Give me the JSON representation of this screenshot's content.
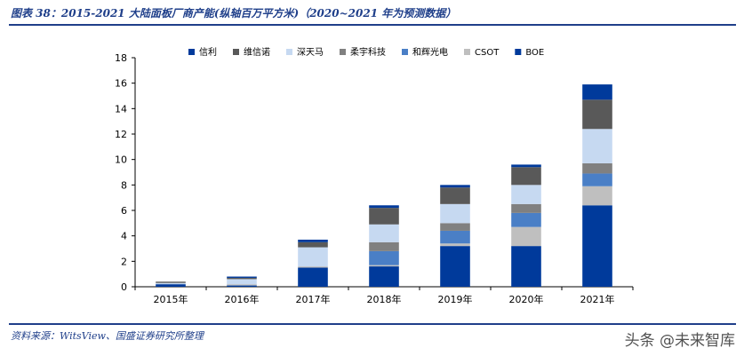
{
  "figure_title": "图表 38：2015-2021 大陆面板厂商产能(纵轴百万平方米)（2020~2021 年为预测数据）",
  "source": "资料来源：WitsView、国盛证券研究所整理",
  "watermark": "头条 @未来智库",
  "chart_data": {
    "type": "bar",
    "stacked": true,
    "title": "",
    "xlabel": "",
    "ylabel": "",
    "ylim": [
      0,
      18
    ],
    "yticks": [
      0,
      2,
      4,
      6,
      8,
      10,
      12,
      14,
      16,
      18
    ],
    "categories": [
      "2015年",
      "2016年",
      "2017年",
      "2018年",
      "2019年",
      "2020年",
      "2021年"
    ],
    "legend_position": "top",
    "grid": false,
    "series": [
      {
        "name": "BOE",
        "color": "#003a9b",
        "values": [
          0.2,
          0.1,
          1.5,
          1.6,
          3.2,
          3.2,
          6.4
        ]
      },
      {
        "name": "CSOT",
        "color": "#bfbfbf",
        "values": [
          0.0,
          0.1,
          0.1,
          0.1,
          0.2,
          1.5,
          1.5
        ]
      },
      {
        "name": "和辉光电",
        "color": "#4a7fc6",
        "values": [
          0.0,
          0.0,
          0.0,
          1.1,
          1.0,
          1.1,
          1.0
        ]
      },
      {
        "name": "柔宇科技",
        "color": "#808080",
        "values": [
          0.0,
          0.0,
          0.0,
          0.7,
          0.6,
          0.7,
          0.8
        ]
      },
      {
        "name": "深天马",
        "color": "#c6d9f1",
        "values": [
          0.1,
          0.4,
          1.5,
          1.4,
          1.5,
          1.5,
          2.7
        ]
      },
      {
        "name": "维信诺",
        "color": "#595959",
        "values": [
          0.1,
          0.1,
          0.4,
          1.3,
          1.3,
          1.4,
          2.3
        ]
      },
      {
        "name": "信利",
        "color": "#003a9b",
        "values": [
          0.0,
          0.1,
          0.2,
          0.2,
          0.2,
          0.2,
          1.2
        ]
      }
    ],
    "legend_order": [
      "信利",
      "维信诺",
      "深天马",
      "柔宇科技",
      "和辉光电",
      "CSOT",
      "BOE"
    ]
  }
}
